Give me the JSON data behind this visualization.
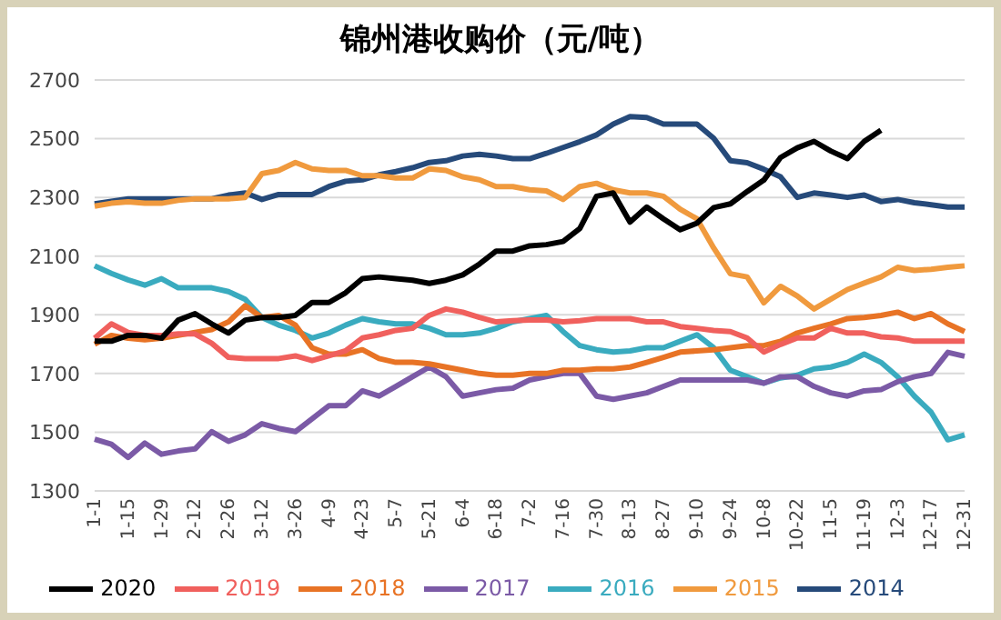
{
  "chart_data": {
    "type": "line",
    "title": "锦州港收购价（元/吨）",
    "categories": [
      "1-1",
      null,
      "1-15",
      null,
      "1-29",
      null,
      "2-12",
      null,
      "2-26",
      null,
      "3-12",
      null,
      "3-26",
      null,
      "4-9",
      null,
      "4-23",
      null,
      "5-7",
      null,
      "5-21",
      null,
      "6-4",
      null,
      "6-18",
      null,
      "7-2",
      null,
      "7-16",
      null,
      "7-30",
      null,
      "8-13",
      null,
      "8-27",
      null,
      "9-10",
      null,
      "9-24",
      null,
      "10-8",
      null,
      "10-22",
      null,
      "11-5",
      null,
      "11-19",
      null,
      "12-3",
      null,
      "12-17",
      null,
      "12-31"
    ],
    "ylim": [
      1300,
      2700
    ],
    "yticks": [
      1300,
      1500,
      1700,
      1900,
      2100,
      2300,
      2500,
      2700
    ],
    "grid": "y",
    "legend": "bottom",
    "marker": "none",
    "line_style": "solid",
    "series": [
      {
        "name": "2020",
        "color": "#000000",
        "values": [
          1810,
          1810,
          1830,
          1830,
          1820,
          1882,
          1904,
          1869,
          1838,
          1882,
          1891,
          1891,
          1898,
          1942,
          1942,
          1975,
          2023,
          2029,
          2023,
          2018,
          2007,
          2018,
          2036,
          2073,
          2117,
          2117,
          2135,
          2139,
          2150,
          2194,
          2304,
          2315,
          2216,
          2267,
          2227,
          2190,
          2212,
          2265,
          2278,
          2320,
          2359,
          2436,
          2469,
          2491,
          2458,
          2432,
          2491,
          2529,
          null,
          null,
          null,
          null,
          null
        ]
      },
      {
        "name": "2019",
        "color": "#f0605d",
        "values": [
          1820,
          1869,
          1840,
          1830,
          1830,
          1835,
          1835,
          1803,
          1755,
          1751,
          1751,
          1751,
          1760,
          1744,
          1760,
          1777,
          1821,
          1832,
          1847,
          1854,
          1898,
          1920,
          1909,
          1891,
          1876,
          1880,
          1882,
          1882,
          1876,
          1880,
          1887,
          1887,
          1887,
          1876,
          1876,
          1860,
          1854,
          1847,
          1843,
          1821,
          1773,
          1799,
          1821,
          1821,
          1854,
          1838,
          1838,
          1825,
          1821,
          1810,
          1810,
          1810,
          1810
        ]
      },
      {
        "name": "2018",
        "color": "#e87325",
        "values": [
          1800,
          1830,
          1820,
          1815,
          1820,
          1830,
          1840,
          1850,
          1876,
          1931,
          1891,
          1898,
          1865,
          1788,
          1766,
          1766,
          1781,
          1751,
          1738,
          1738,
          1733,
          1722,
          1711,
          1700,
          1694,
          1694,
          1700,
          1700,
          1711,
          1711,
          1716,
          1716,
          1722,
          1738,
          1755,
          1773,
          1777,
          1781,
          1788,
          1795,
          1795,
          1810,
          1838,
          1854,
          1869,
          1887,
          1891,
          1898,
          1909,
          1887,
          1904,
          1869,
          1843
        ]
      },
      {
        "name": "2017",
        "color": "#7b5aa6",
        "values": [
          1476,
          1459,
          1414,
          1463,
          1425,
          1436,
          1443,
          1502,
          1469,
          1491,
          1529,
          1513,
          1502,
          1546,
          1590,
          1590,
          1641,
          1623,
          1656,
          1689,
          1722,
          1689,
          1623,
          1634,
          1645,
          1650,
          1678,
          1689,
          1700,
          1700,
          1623,
          1612,
          1623,
          1634,
          1656,
          1678,
          1678,
          1678,
          1678,
          1678,
          1667,
          1689,
          1689,
          1656,
          1634,
          1623,
          1641,
          1645,
          1672,
          1689,
          1700,
          1772,
          1759
        ]
      },
      {
        "name": "2016",
        "color": "#3aabbf",
        "values": [
          2067,
          2041,
          2019,
          2001,
          2023,
          1992,
          1992,
          1992,
          1979,
          1953,
          1891,
          1865,
          1847,
          1821,
          1838,
          1865,
          1887,
          1876,
          1869,
          1869,
          1854,
          1832,
          1832,
          1838,
          1854,
          1876,
          1887,
          1898,
          1843,
          1795,
          1781,
          1773,
          1777,
          1788,
          1788,
          1810,
          1832,
          1788,
          1711,
          1689,
          1667,
          1685,
          1694,
          1716,
          1722,
          1738,
          1766,
          1738,
          1689,
          1623,
          1568,
          1474,
          1491
        ]
      },
      {
        "name": "2015",
        "color": "#f09a3e",
        "values": [
          2270,
          2280,
          2285,
          2280,
          2280,
          2290,
          2295,
          2295,
          2295,
          2300,
          2381,
          2392,
          2419,
          2397,
          2392,
          2392,
          2374,
          2374,
          2366,
          2366,
          2397,
          2392,
          2370,
          2360,
          2337,
          2337,
          2326,
          2322,
          2293,
          2337,
          2348,
          2326,
          2315,
          2315,
          2304,
          2260,
          2227,
          2128,
          2040,
          2029,
          1941,
          1997,
          1964,
          1920,
          1953,
          1986,
          2008,
          2029,
          2062,
          2051,
          2055,
          2062,
          2067
        ]
      },
      {
        "name": "2014",
        "color": "#264a7a",
        "values": [
          2278,
          2287,
          2295,
          2295,
          2295,
          2295,
          2295,
          2295,
          2308,
          2315,
          2293,
          2310,
          2310,
          2310,
          2337,
          2355,
          2360,
          2377,
          2388,
          2401,
          2419,
          2425,
          2441,
          2447,
          2441,
          2432,
          2432,
          2450,
          2470,
          2490,
          2513,
          2550,
          2575,
          2572,
          2550,
          2550,
          2550,
          2502,
          2425,
          2418,
          2396,
          2370,
          2300,
          2315,
          2308,
          2300,
          2308,
          2286,
          2293,
          2282,
          2275,
          2267,
          2267
        ]
      }
    ]
  }
}
